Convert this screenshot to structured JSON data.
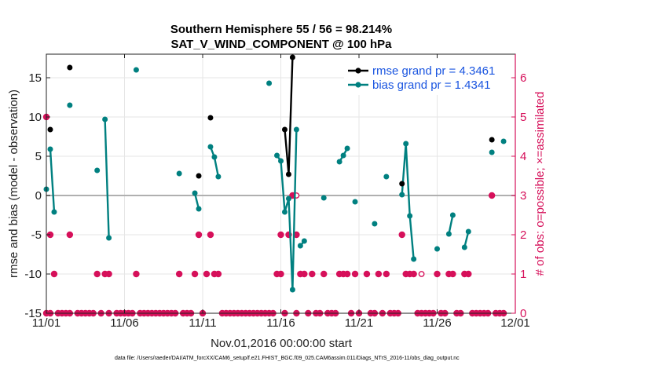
{
  "chart_data": {
    "type": "line",
    "title": "Southern Hemisphere 55 / 56 = 98.214%",
    "subtitle": "SAT_V_WIND_COMPONENT @ 100 hPa",
    "xlabel": "Nov.01,2016 00:00:00 start",
    "ylabel": "rmse and bias (model - observation)",
    "ylabel_right": "# of obs: o=possible; ×=assimilated",
    "xlim": [
      0,
      30
    ],
    "ylim": [
      -15,
      18
    ],
    "ylim_right": [
      0,
      6.6
    ],
    "x_ticks": [
      0,
      5,
      10,
      15,
      20,
      25,
      30
    ],
    "x_tick_labels": [
      "11/01",
      "11/06",
      "11/11",
      "11/16",
      "11/21",
      "11/26",
      "12/01"
    ],
    "y_ticks": [
      -15,
      -10,
      -5,
      0,
      5,
      10,
      15
    ],
    "y_tick_labels": [
      "-15",
      "-10",
      "-5",
      "0",
      "5",
      "10",
      "15"
    ],
    "y_ticks_right": [
      0,
      1,
      2,
      3,
      4,
      5,
      6
    ],
    "y_tick_labels_right": [
      "0",
      "1",
      "2",
      "3",
      "4",
      "5",
      "6"
    ],
    "grid": true,
    "legend_position": "top-right",
    "colors": {
      "rmse": "#000000",
      "bias": "#008080",
      "obs": "#d6105a",
      "zero_line": "#b0b0b0",
      "legend_text": "#1a55e0"
    },
    "series": [
      {
        "name": "rmse grand pr = 4.3461",
        "axis": "left",
        "segments": [
          [
            [
              0.25,
              8.4
            ]
          ],
          [
            [
              1.5,
              16.3
            ]
          ],
          [
            [
              9.75,
              2.5
            ]
          ],
          [
            [
              10.5,
              9.9
            ]
          ],
          [
            [
              15.25,
              8.4
            ],
            [
              15.5,
              2.7
            ],
            [
              15.75,
              17.6
            ]
          ],
          [
            [
              22.75,
              1.5
            ]
          ],
          [
            [
              28.5,
              7.1
            ]
          ]
        ]
      },
      {
        "name": "bias grand pr = 1.4341",
        "axis": "left",
        "segments": [
          [
            [
              0.0,
              0.8
            ]
          ],
          [
            [
              0.25,
              5.9
            ],
            [
              0.5,
              -2.1
            ]
          ],
          [
            [
              1.5,
              11.5
            ]
          ],
          [
            [
              3.25,
              3.2
            ]
          ],
          [
            [
              3.75,
              9.7
            ],
            [
              4.0,
              -5.4
            ]
          ],
          [
            [
              5.75,
              16.0
            ]
          ],
          [
            [
              8.5,
              2.8
            ]
          ],
          [
            [
              9.5,
              0.3
            ],
            [
              9.75,
              -1.7
            ]
          ],
          [
            [
              10.5,
              6.2
            ],
            [
              10.75,
              4.9
            ],
            [
              11.0,
              2.4
            ]
          ],
          [
            [
              14.25,
              14.3
            ]
          ],
          [
            [
              14.75,
              5.1
            ],
            [
              15.0,
              4.4
            ],
            [
              15.25,
              -2.1
            ],
            [
              15.5,
              -0.4
            ],
            [
              15.75,
              -12.0
            ],
            [
              16.0,
              8.4
            ]
          ],
          [
            [
              16.25,
              -6.4
            ],
            [
              16.5,
              -5.8
            ]
          ],
          [
            [
              17.75,
              -0.3
            ]
          ],
          [
            [
              18.75,
              4.3
            ],
            [
              19.0,
              5.1
            ],
            [
              19.25,
              6.0
            ]
          ],
          [
            [
              19.75,
              -0.8
            ]
          ],
          [
            [
              21.0,
              -3.6
            ]
          ],
          [
            [
              21.75,
              2.4
            ]
          ],
          [
            [
              22.75,
              0.1
            ],
            [
              23.0,
              6.6
            ],
            [
              23.25,
              -2.6
            ],
            [
              23.5,
              -8.1
            ]
          ],
          [
            [
              25.0,
              -6.8
            ]
          ],
          [
            [
              25.75,
              -4.9
            ],
            [
              26.0,
              -2.5
            ]
          ],
          [
            [
              26.75,
              -6.6
            ],
            [
              27.0,
              -4.6
            ]
          ],
          [
            [
              28.5,
              5.5
            ]
          ],
          [
            [
              29.25,
              6.9
            ]
          ]
        ]
      }
    ],
    "obs_possible": [
      [
        16.0,
        3
      ],
      [
        24.0,
        1
      ]
    ],
    "obs_assimilated": [
      [
        0.0,
        5
      ],
      [
        0.0,
        0
      ],
      [
        0.25,
        0
      ],
      [
        0.25,
        2
      ],
      [
        0.5,
        1
      ],
      [
        0.75,
        0
      ],
      [
        1.0,
        0
      ],
      [
        1.25,
        0
      ],
      [
        1.5,
        0
      ],
      [
        1.5,
        2
      ],
      [
        2.0,
        0
      ],
      [
        2.25,
        0
      ],
      [
        2.5,
        0
      ],
      [
        2.75,
        0
      ],
      [
        3.0,
        0
      ],
      [
        3.25,
        1
      ],
      [
        3.5,
        0
      ],
      [
        3.75,
        1
      ],
      [
        4.0,
        1
      ],
      [
        4.0,
        0
      ],
      [
        4.5,
        0
      ],
      [
        4.75,
        0
      ],
      [
        5.0,
        0
      ],
      [
        5.25,
        0
      ],
      [
        5.5,
        0
      ],
      [
        5.75,
        1
      ],
      [
        6.0,
        0
      ],
      [
        6.25,
        0
      ],
      [
        6.5,
        0
      ],
      [
        6.75,
        0
      ],
      [
        7.0,
        0
      ],
      [
        7.25,
        0
      ],
      [
        7.5,
        0
      ],
      [
        7.75,
        0
      ],
      [
        8.0,
        0
      ],
      [
        8.25,
        0
      ],
      [
        8.5,
        1
      ],
      [
        8.75,
        0
      ],
      [
        9.0,
        0
      ],
      [
        9.25,
        0
      ],
      [
        9.5,
        1
      ],
      [
        9.75,
        2
      ],
      [
        10.0,
        0
      ],
      [
        10.25,
        1
      ],
      [
        10.5,
        2
      ],
      [
        10.75,
        1
      ],
      [
        11.0,
        1
      ],
      [
        11.25,
        0
      ],
      [
        11.5,
        0
      ],
      [
        11.75,
        0
      ],
      [
        12.0,
        0
      ],
      [
        12.25,
        0
      ],
      [
        12.5,
        0
      ],
      [
        12.75,
        0
      ],
      [
        13.0,
        0
      ],
      [
        13.25,
        0
      ],
      [
        13.5,
        0
      ],
      [
        13.75,
        0
      ],
      [
        14.0,
        0
      ],
      [
        14.25,
        0
      ],
      [
        14.5,
        0
      ],
      [
        14.75,
        1
      ],
      [
        15.0,
        2
      ],
      [
        15.0,
        1
      ],
      [
        15.25,
        0
      ],
      [
        15.5,
        2
      ],
      [
        15.75,
        3
      ],
      [
        16.0,
        2
      ],
      [
        16.0,
        0
      ],
      [
        16.25,
        1
      ],
      [
        16.5,
        1
      ],
      [
        16.75,
        0
      ],
      [
        17.0,
        1
      ],
      [
        17.25,
        0
      ],
      [
        17.5,
        0
      ],
      [
        17.75,
        1
      ],
      [
        18.0,
        0
      ],
      [
        18.25,
        0
      ],
      [
        18.5,
        0
      ],
      [
        18.75,
        1
      ],
      [
        19.0,
        1
      ],
      [
        19.25,
        1
      ],
      [
        19.5,
        0
      ],
      [
        19.75,
        1
      ],
      [
        20.0,
        0
      ],
      [
        20.5,
        1
      ],
      [
        20.75,
        0
      ],
      [
        21.0,
        0
      ],
      [
        21.25,
        1
      ],
      [
        21.5,
        0
      ],
      [
        21.75,
        1
      ],
      [
        22.0,
        0
      ],
      [
        22.25,
        0
      ],
      [
        22.5,
        0
      ],
      [
        22.75,
        2
      ],
      [
        23.0,
        1
      ],
      [
        23.25,
        1
      ],
      [
        23.5,
        1
      ],
      [
        23.75,
        0
      ],
      [
        24.0,
        0
      ],
      [
        24.25,
        0
      ],
      [
        24.5,
        0
      ],
      [
        24.75,
        0
      ],
      [
        25.0,
        1
      ],
      [
        25.25,
        0
      ],
      [
        25.5,
        0
      ],
      [
        25.75,
        1
      ],
      [
        26.0,
        1
      ],
      [
        26.25,
        0
      ],
      [
        26.5,
        0
      ],
      [
        26.75,
        1
      ],
      [
        27.0,
        1
      ],
      [
        27.25,
        0
      ],
      [
        27.5,
        0
      ],
      [
        27.75,
        0
      ],
      [
        28.0,
        0
      ],
      [
        28.25,
        0
      ],
      [
        28.5,
        3
      ],
      [
        28.75,
        0
      ],
      [
        29.0,
        0
      ],
      [
        29.25,
        0
      ]
    ]
  },
  "footer": "data file: /Users/raeder/DAI/ATM_forcXX/CAM6_setup/f.e21.FHIST_BGC.f09_025.CAM6assim.011/Diags_NTrS_2016-11/obs_diag_output.nc"
}
